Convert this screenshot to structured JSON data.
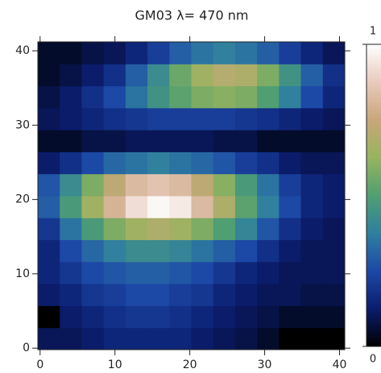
{
  "chart_data": {
    "type": "heatmap",
    "title": "GM03 λ= 470 nm",
    "xlim": [
      -0.3,
      40.7
    ],
    "ylim": [
      -0.2,
      41.2
    ],
    "xticks": [
      0,
      10,
      20,
      30,
      40
    ],
    "yticks": [
      0,
      10,
      20,
      30,
      40
    ],
    "clim": [
      0,
      1
    ],
    "cbar_ticks": [
      0,
      1
    ],
    "colormap": [
      "#000000",
      "#0b1d6e",
      "#1c48a6",
      "#2f7fa0",
      "#4f9f72",
      "#97b45e",
      "#c9a67a",
      "#e8cabd",
      "#ffffff"
    ],
    "z": [
      [
        0.1,
        0.1,
        0.12,
        0.15,
        0.15,
        0.15,
        0.15,
        0.12,
        0.1,
        0.08,
        0.05,
        0,
        0,
        0
      ],
      [
        0,
        0.12,
        0.15,
        0.18,
        0.2,
        0.2,
        0.18,
        0.15,
        0.12,
        0.1,
        0.08,
        0.05,
        0.05,
        0.05
      ],
      [
        0.12,
        0.15,
        0.2,
        0.22,
        0.25,
        0.25,
        0.22,
        0.2,
        0.15,
        0.12,
        0.1,
        0.1,
        0.08,
        0.08
      ],
      [
        0.15,
        0.2,
        0.25,
        0.28,
        0.3,
        0.3,
        0.28,
        0.25,
        0.2,
        0.15,
        0.12,
        0.1,
        0.1,
        0.1
      ],
      [
        0.15,
        0.25,
        0.32,
        0.38,
        0.42,
        0.42,
        0.4,
        0.35,
        0.3,
        0.25,
        0.18,
        0.12,
        0.1,
        0.1
      ],
      [
        0.2,
        0.35,
        0.48,
        0.58,
        0.65,
        0.68,
        0.65,
        0.58,
        0.5,
        0.4,
        0.28,
        0.18,
        0.12,
        0.1
      ],
      [
        0.3,
        0.48,
        0.65,
        0.8,
        0.92,
        0.98,
        0.95,
        0.82,
        0.68,
        0.52,
        0.38,
        0.25,
        0.15,
        0.12
      ],
      [
        0.28,
        0.42,
        0.58,
        0.72,
        0.82,
        0.85,
        0.82,
        0.72,
        0.6,
        0.48,
        0.35,
        0.22,
        0.15,
        0.12
      ],
      [
        0.12,
        0.18,
        0.25,
        0.32,
        0.35,
        0.38,
        0.35,
        0.32,
        0.28,
        0.22,
        0.18,
        0.12,
        0.1,
        0.1
      ],
      [
        0.05,
        0.05,
        0.08,
        0.08,
        0.1,
        0.1,
        0.1,
        0.1,
        0.08,
        0.08,
        0.05,
        0.05,
        0.05,
        0.05
      ],
      [
        0.1,
        0.12,
        0.15,
        0.18,
        0.2,
        0.22,
        0.22,
        0.22,
        0.22,
        0.2,
        0.18,
        0.15,
        0.12,
        0.1
      ],
      [
        0.08,
        0.12,
        0.18,
        0.25,
        0.35,
        0.45,
        0.52,
        0.58,
        0.6,
        0.58,
        0.5,
        0.38,
        0.25,
        0.15
      ],
      [
        0.05,
        0.08,
        0.12,
        0.18,
        0.3,
        0.42,
        0.55,
        0.65,
        0.7,
        0.68,
        0.58,
        0.45,
        0.3,
        0.18
      ],
      [
        0.05,
        0.05,
        0.08,
        0.1,
        0.15,
        0.22,
        0.3,
        0.35,
        0.38,
        0.35,
        0.3,
        0.22,
        0.15,
        0.1
      ]
    ]
  }
}
